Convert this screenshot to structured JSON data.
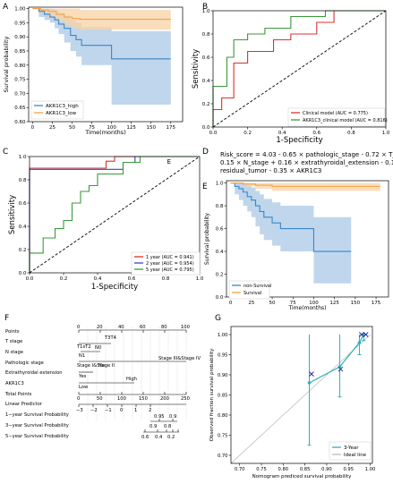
{
  "panel_labels": {
    "A": "A",
    "B": "B",
    "C": "C",
    "D": "D",
    "E": "E",
    "F": "F",
    "G": "G"
  },
  "chart_data": [
    {
      "panel": "A",
      "type": "line",
      "step": true,
      "xlabel": "Time(months)",
      "ylabel": "Survival probability",
      "xlim": [
        -5,
        190
      ],
      "ylim": [
        0.6,
        1.005
      ],
      "xticks": [
        0,
        25,
        50,
        75,
        100,
        125,
        150,
        175
      ],
      "yticks": [
        0.6,
        0.65,
        0.7,
        0.75,
        0.8,
        0.85,
        0.9,
        0.95,
        1.0
      ],
      "series": [
        {
          "name": "AKR1C3_high",
          "color": "#3a86c8",
          "band_color": "#a9c8e6",
          "x": [
            0,
            8,
            15,
            22,
            28,
            33,
            40,
            48,
            55,
            62,
            100,
            175
          ],
          "y": [
            1.0,
            0.99,
            0.98,
            0.97,
            0.96,
            0.945,
            0.93,
            0.905,
            0.89,
            0.87,
            0.822,
            0.822
          ],
          "lower": [
            1.0,
            0.97,
            0.96,
            0.95,
            0.93,
            0.91,
            0.88,
            0.85,
            0.83,
            0.8,
            0.66,
            0.66
          ],
          "upper": [
            1.0,
            1.0,
            1.0,
            1.0,
            0.995,
            0.985,
            0.975,
            0.96,
            0.95,
            0.935,
            0.92,
            0.92
          ]
        },
        {
          "name": "AKR1C3_low",
          "color": "#f5a144",
          "band_color": "#f8d3a6",
          "x": [
            0,
            10,
            20,
            30,
            40,
            50,
            60,
            175
          ],
          "y": [
            1.0,
            0.995,
            0.99,
            0.98,
            0.97,
            0.965,
            0.962,
            0.962
          ],
          "lower": [
            1.0,
            0.985,
            0.97,
            0.955,
            0.94,
            0.93,
            0.925,
            0.925
          ],
          "upper": [
            1.0,
            1.0,
            1.0,
            1.0,
            1.0,
            1.0,
            0.995,
            0.995
          ]
        }
      ],
      "legend_position": "bottom-left"
    },
    {
      "panel": "B",
      "type": "line",
      "step": true,
      "xlabel": "1-Specificity",
      "ylabel": "Sensitivity",
      "xlim": [
        0,
        1
      ],
      "ylim": [
        0,
        1
      ],
      "xticks": [
        0.0,
        0.2,
        0.4,
        0.6,
        0.8,
        1.0
      ],
      "yticks": [
        0.0,
        0.2,
        0.4,
        0.6,
        0.8,
        1.0
      ],
      "series": [
        {
          "name": "Clinical model (AUC = 0.775)",
          "color": "#d9342b",
          "x": [
            0,
            0,
            0.05,
            0.05,
            0.12,
            0.12,
            0.2,
            0.2,
            0.28,
            0.35,
            0.35,
            0.45,
            0.45,
            0.6,
            0.6,
            0.7,
            0.7,
            1.0
          ],
          "y": [
            0,
            0.15,
            0.15,
            0.25,
            0.25,
            0.55,
            0.55,
            0.65,
            0.65,
            0.65,
            0.75,
            0.75,
            0.8,
            0.8,
            0.9,
            0.9,
            1.0,
            1.0
          ]
        },
        {
          "name": "AKR1C3_clinical model (AUC = 0.816)",
          "color": "#3a9a3a",
          "x": [
            0,
            0,
            0.08,
            0.08,
            0.12,
            0.12,
            0.2,
            0.2,
            0.3,
            0.3,
            0.45,
            0.45,
            0.65,
            0.65,
            1.0
          ],
          "y": [
            0,
            0.35,
            0.35,
            0.6,
            0.6,
            0.75,
            0.75,
            0.8,
            0.8,
            0.85,
            0.85,
            0.95,
            0.95,
            1.0,
            1.0
          ]
        }
      ],
      "diagonal": true,
      "legend_position": "bottom-right"
    },
    {
      "panel": "C",
      "type": "line",
      "step": true,
      "xlabel": "1-Specificity",
      "ylabel": "Sensitivity",
      "xlim": [
        0,
        1
      ],
      "ylim": [
        0,
        1
      ],
      "xticks": [
        0.0,
        0.2,
        0.4,
        0.6,
        0.8,
        1.0
      ],
      "yticks": [
        0.0,
        0.2,
        0.4,
        0.6,
        0.8,
        1.0
      ],
      "series": [
        {
          "name": "1 year (AUC = 0.941)",
          "color": "#d9342b",
          "x": [
            0,
            0,
            0.45,
            0.45,
            0.5,
            0.5,
            1.0
          ],
          "y": [
            0,
            0.9,
            0.9,
            0.96,
            0.96,
            1.0,
            1.0
          ]
        },
        {
          "name": "2 year (AUC = 0.954)",
          "color": "#3b44c4",
          "x": [
            0,
            0,
            0.55,
            0.55,
            0.62,
            0.62,
            1.0
          ],
          "y": [
            0,
            0.89,
            0.89,
            0.95,
            0.95,
            1.0,
            1.0
          ]
        },
        {
          "name": "5 year (AUC = 0.795)",
          "color": "#3a9a3a",
          "x": [
            0,
            0,
            0.08,
            0.08,
            0.15,
            0.15,
            0.2,
            0.2,
            0.25,
            0.25,
            0.3,
            0.3,
            0.35,
            0.35,
            0.4,
            0.4,
            0.55,
            0.55,
            0.65,
            0.65,
            1.0
          ],
          "y": [
            0,
            0.17,
            0.17,
            0.3,
            0.3,
            0.38,
            0.38,
            0.45,
            0.45,
            0.6,
            0.6,
            0.7,
            0.7,
            0.75,
            0.75,
            0.85,
            0.85,
            0.95,
            0.95,
            1.0,
            1.0
          ]
        }
      ],
      "diagonal": true,
      "annotation": "E",
      "legend_position": "bottom-right"
    },
    {
      "panel": "E",
      "type": "line",
      "step": true,
      "xlabel": "Time(months)",
      "ylabel": "Survival probability",
      "xlim": [
        -5,
        190
      ],
      "ylim": [
        0.0,
        1.02
      ],
      "xticks": [
        0,
        25,
        50,
        75,
        100,
        125,
        150,
        175
      ],
      "yticks": [
        0.0,
        0.2,
        0.4,
        0.6,
        0.8,
        1.0
      ],
      "series": [
        {
          "name": "non-Survival",
          "color": "#3a86c8",
          "band_color": "#a9c8e6",
          "x": [
            0,
            5,
            10,
            15,
            20,
            25,
            30,
            35,
            40,
            50,
            60,
            75,
            100,
            145
          ],
          "y": [
            1.0,
            0.97,
            0.95,
            0.92,
            0.88,
            0.85,
            0.8,
            0.75,
            0.7,
            0.65,
            0.6,
            0.6,
            0.4,
            0.4
          ],
          "lower": [
            1.0,
            0.9,
            0.85,
            0.8,
            0.75,
            0.7,
            0.62,
            0.55,
            0.5,
            0.45,
            0.4,
            0.4,
            0.12,
            0.12
          ],
          "upper": [
            1.0,
            1.0,
            1.0,
            1.0,
            0.98,
            0.96,
            0.93,
            0.9,
            0.86,
            0.83,
            0.8,
            0.8,
            0.7,
            0.7
          ]
        },
        {
          "name": "Survival",
          "color": "#f5a144",
          "band_color": "#f8d3a6",
          "x": [
            0,
            15,
            30,
            50,
            180
          ],
          "y": [
            1.0,
            0.99,
            0.98,
            0.97,
            0.97
          ],
          "lower": [
            1.0,
            0.97,
            0.95,
            0.93,
            0.93
          ],
          "upper": [
            1.0,
            1.0,
            1.0,
            1.0,
            1.0
          ]
        }
      ],
      "legend_position": "bottom-left"
    },
    {
      "panel": "G",
      "type": "scatter",
      "xlabel": "Nomogram prediced survival probability",
      "ylabel": "Observed fraction survival probability",
      "xlim": [
        0.68,
        1.005
      ],
      "ylim": [
        0.68,
        1.02
      ],
      "xticks": [
        0.7,
        0.75,
        0.8,
        0.85,
        0.9,
        0.95,
        1.0
      ],
      "yticks": [
        0.7,
        0.75,
        0.8,
        0.85,
        0.9,
        0.95,
        1.0
      ],
      "series": [
        {
          "name": "3-Year",
          "color": "#2fb0b8",
          "x": [
            0.86,
            0.93,
            0.975,
            0.985
          ],
          "y": [
            0.88,
            0.92,
            0.98,
            1.0
          ],
          "err_low": [
            0.725,
            0.845,
            0.95,
            0.985
          ],
          "err_high": [
            1.0,
            1.0,
            1.0,
            1.0
          ]
        },
        {
          "name": "Ideal line",
          "color": "#a9a9a9",
          "x": [
            0.68,
            1.0
          ],
          "y": [
            0.68,
            1.0
          ]
        }
      ],
      "markers_x": [
        [
          0.865,
          0.902
        ],
        [
          0.932,
          0.914
        ],
        [
          0.98,
          1.0
        ],
        [
          0.99,
          1.0
        ]
      ],
      "legend_position": "bottom-right"
    }
  ],
  "panel_d_text": [
    "Risk_score = 4.03 - 0.65 × pathologic_stage - 0.72 × T_stage +",
    "0.15 × N_stage + 0.16 × extrathyroidal_extension - 0.10 ×",
    "residual_tumor - 0.35 × AKR1C3"
  ],
  "nomogram": {
    "rows": [
      "Points",
      "T stage",
      "N stage",
      "Pathologic stage",
      "Extrathyroidal extension",
      "AKR1C3",
      "Total Points",
      "Linear Predictor",
      "1−year Survival Probability",
      "3−year Survival Probability",
      "5−year Survival Probability"
    ],
    "points_ticks": [
      "0",
      "20",
      "40",
      "60",
      "80",
      "100"
    ],
    "t_stage_labels": [
      "T3T4",
      "T1sT2"
    ],
    "n_stage_labels": [
      "N0",
      "N1"
    ],
    "pathologic_labels": [
      "Stage III&Stage IV",
      "Stage I&Stage II"
    ],
    "extra_labels": [
      "No",
      "Yes"
    ],
    "akr_labels": [
      "Low",
      "High"
    ],
    "total_ticks": [
      "0",
      "50",
      "100",
      "150",
      "200",
      "250"
    ],
    "linear_ticks": [
      "−3",
      "−2",
      "−1",
      "0",
      "1",
      "2"
    ],
    "three_year_ticks": [
      "0.95",
      "0.9"
    ],
    "five_year_ticks": [
      "0.9",
      "0.8",
      "0.6",
      "0.4",
      "0.2"
    ]
  }
}
